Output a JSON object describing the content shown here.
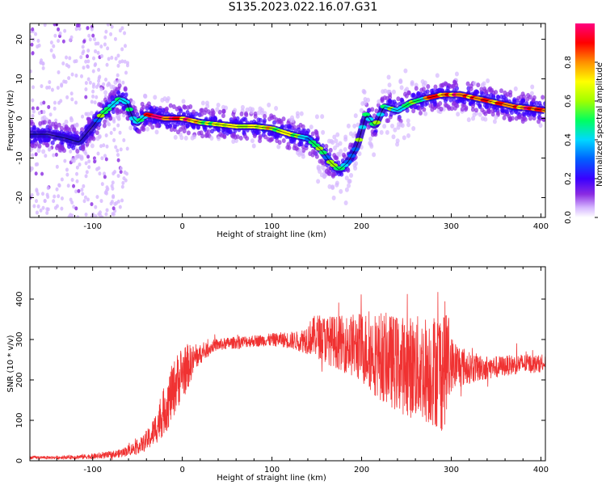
{
  "title": "S135.2023.022.16.07.G31",
  "colors": {
    "snr_line": "#f03232",
    "ridge": "#000000",
    "colormap": [
      "#ffffff",
      "#d6b8ff",
      "#8a2be2",
      "#3a00ff",
      "#0060ff",
      "#00d8ff",
      "#00ff60",
      "#a0ff00",
      "#ffff00",
      "#ff9000",
      "#ff0000",
      "#ff0080"
    ]
  },
  "chart_data": [
    {
      "type": "heatmap",
      "title": "S135.2023.022.16.07.G31",
      "xlabel": "Height of straight line (km)",
      "ylabel": "Frequency (Hz)",
      "xlim": [
        -170,
        405
      ],
      "ylim": [
        -25,
        24
      ],
      "x_ticks": [
        -100,
        0,
        100,
        200,
        300,
        400
      ],
      "y_ticks": [
        -20,
        -10,
        0,
        10,
        20
      ],
      "x_tick_labels": [
        "-100",
        "0",
        "100",
        "200",
        "300",
        "400"
      ],
      "y_tick_labels": [
        "-20",
        "-10",
        "0",
        "10",
        "20"
      ],
      "colorbar": {
        "label": "Normalized spectral amplitude",
        "range": [
          0,
          1
        ],
        "ticks": [
          0.0,
          0.2,
          0.4,
          0.6,
          0.8
        ],
        "tick_labels": [
          "0.0",
          "0.2",
          "0.4",
          "0.6",
          "0.8"
        ]
      },
      "ridge": {
        "x": [
          -150,
          -130,
          -115,
          -100,
          -90,
          -80,
          -70,
          -62,
          -55,
          -50,
          -40,
          -30,
          -20,
          0,
          20,
          40,
          60,
          80,
          100,
          120,
          140,
          155,
          165,
          175,
          185,
          195,
          205,
          215,
          225,
          240,
          255,
          270,
          290,
          310,
          330,
          350,
          370,
          390,
          405
        ],
        "y": [
          -4,
          -5,
          -6,
          -2,
          1,
          3,
          5,
          4,
          0,
          -1,
          1,
          0.5,
          0,
          0,
          -1,
          -1.5,
          -2,
          -2,
          -2.5,
          -4,
          -5,
          -8,
          -11,
          -13,
          -11,
          -7,
          1,
          -2,
          3,
          2,
          4,
          5,
          6,
          6,
          5,
          4,
          3,
          2.5,
          2
        ]
      }
    },
    {
      "type": "line",
      "xlabel": "Height of straight line (km)",
      "ylabel": "SNR (10 * v/v)",
      "xlim": [
        -170,
        405
      ],
      "ylim": [
        0,
        480
      ],
      "x_ticks": [
        -100,
        0,
        100,
        200,
        300,
        400
      ],
      "y_ticks": [
        0,
        100,
        200,
        300,
        400
      ],
      "x_tick_labels": [
        "-100",
        "0",
        "100",
        "200",
        "300",
        "400"
      ],
      "y_tick_labels": [
        "0",
        "100",
        "200",
        "300",
        "400"
      ],
      "envelope": {
        "x": [
          -170,
          -140,
          -110,
          -90,
          -70,
          -55,
          -45,
          -35,
          -25,
          -15,
          -5,
          5,
          15,
          25,
          35,
          50,
          70,
          90,
          110,
          130,
          150,
          160,
          180,
          200,
          220,
          240,
          260,
          280,
          290,
          295,
          300,
          320,
          340,
          360,
          380,
          405
        ],
        "mean": [
          8,
          8,
          10,
          12,
          18,
          30,
          40,
          60,
          100,
          150,
          200,
          230,
          255,
          270,
          285,
          290,
          295,
          298,
          300,
          296,
          310,
          300,
          290,
          280,
          260,
          240,
          230,
          225,
          230,
          250,
          240,
          230,
          230,
          235,
          240,
          240
        ],
        "spread": [
          4,
          4,
          6,
          8,
          10,
          15,
          20,
          30,
          50,
          70,
          70,
          60,
          30,
          20,
          15,
          15,
          15,
          15,
          18,
          25,
          55,
          60,
          70,
          90,
          110,
          120,
          130,
          140,
          160,
          150,
          70,
          40,
          30,
          25,
          25,
          20
        ]
      }
    }
  ]
}
